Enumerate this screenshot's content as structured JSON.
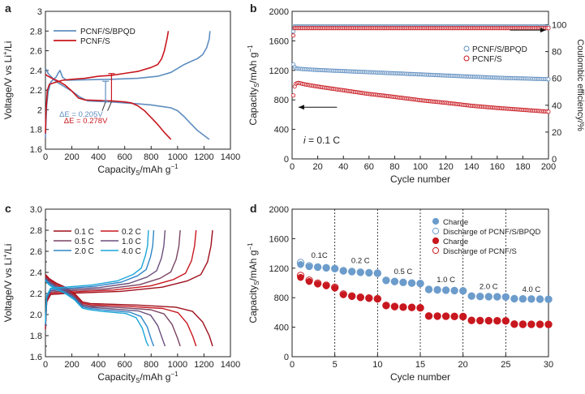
{
  "colors": {
    "red": "#c8171e",
    "blue": "#5f8ec0",
    "blue_fill": "#6c9ccb",
    "light_blue": "#9cc0e0",
    "axis": "#222222",
    "ref_line": "#9aa6b0"
  },
  "chart_data": [
    {
      "id": "a",
      "panel_label": "a",
      "type": "line",
      "xlabel_main": "Capacity",
      "xlabel_sub": "S",
      "xlabel_rest": "/mAh g",
      "xlabel_sup": "−1",
      "ylabel_main": "Voltage/V vs Li",
      "ylabel_sup": "+",
      "ylabel_rest": "/Li",
      "xlim": [
        0,
        1400
      ],
      "ylim": [
        1.6,
        3.0
      ],
      "xticks": [
        0,
        200,
        400,
        600,
        800,
        1000,
        1200,
        1400
      ],
      "yticks": [
        1.6,
        1.8,
        2.0,
        2.2,
        2.4,
        2.6,
        2.8,
        3.0
      ],
      "series": [
        {
          "name": "PCNF/S/BPQD",
          "color": "#5f8ec0",
          "segments": [
            [
              [
                0,
                2.42
              ],
              [
                10,
                2.4
              ],
              [
                20,
                2.37
              ],
              [
                40,
                2.34
              ],
              [
                70,
                2.3
              ],
              [
                100,
                2.27
              ],
              [
                150,
                2.23
              ],
              [
                200,
                2.19
              ],
              [
                260,
                2.13
              ],
              [
                320,
                2.09
              ],
              [
                400,
                2.085
              ],
              [
                500,
                2.08
              ],
              [
                600,
                2.07
              ],
              [
                700,
                2.06
              ],
              [
                800,
                2.05
              ],
              [
                900,
                2.03
              ],
              [
                950,
                2.02
              ],
              [
                1000,
                1.99
              ],
              [
                1050,
                1.93
              ],
              [
                1100,
                1.86
              ],
              [
                1150,
                1.79
              ],
              [
                1200,
                1.74
              ],
              [
                1240,
                1.7
              ]
            ],
            [
              [
                0,
                1.72
              ],
              [
                5,
                1.9
              ],
              [
                10,
                2.05
              ],
              [
                20,
                2.18
              ],
              [
                40,
                2.28
              ],
              [
                60,
                2.31
              ],
              [
                80,
                2.33
              ],
              [
                100,
                2.38
              ],
              [
                110,
                2.4
              ],
              [
                130,
                2.33
              ],
              [
                160,
                2.3
              ],
              [
                300,
                2.305
              ],
              [
                500,
                2.31
              ],
              [
                700,
                2.32
              ],
              [
                850,
                2.34
              ],
              [
                950,
                2.38
              ],
              [
                1000,
                2.42
              ],
              [
                1050,
                2.46
              ],
              [
                1100,
                2.49
              ],
              [
                1150,
                2.52
              ],
              [
                1190,
                2.56
              ],
              [
                1220,
                2.63
              ],
              [
                1240,
                2.72
              ],
              [
                1245,
                2.8
              ]
            ]
          ]
        },
        {
          "name": "PCNF/S",
          "color": "#c8171e",
          "segments": [
            [
              [
                0,
                2.36
              ],
              [
                20,
                2.34
              ],
              [
                50,
                2.32
              ],
              [
                100,
                2.29
              ],
              [
                150,
                2.25
              ],
              [
                200,
                2.19
              ],
              [
                250,
                2.12
              ],
              [
                300,
                2.1
              ],
              [
                400,
                2.095
              ],
              [
                500,
                2.09
              ],
              [
                600,
                2.08
              ],
              [
                650,
                2.07
              ],
              [
                700,
                2.04
              ],
              [
                750,
                1.99
              ],
              [
                800,
                1.92
              ],
              [
                850,
                1.85
              ],
              [
                900,
                1.77
              ],
              [
                950,
                1.7
              ]
            ],
            [
              [
                0,
                1.76
              ],
              [
                5,
                2.0
              ],
              [
                15,
                2.2
              ],
              [
                30,
                2.26
              ],
              [
                80,
                2.28
              ],
              [
                130,
                2.3
              ],
              [
                200,
                2.31
              ],
              [
                300,
                2.32
              ],
              [
                400,
                2.34
              ],
              [
                500,
                2.35
              ],
              [
                600,
                2.37
              ],
              [
                700,
                2.39
              ],
              [
                800,
                2.43
              ],
              [
                850,
                2.46
              ],
              [
                880,
                2.52
              ],
              [
                900,
                2.6
              ],
              [
                920,
                2.72
              ],
              [
                930,
                2.8
              ]
            ]
          ]
        }
      ],
      "legend": [
        "PCNF/S/BPQD",
        "PCNF/S"
      ],
      "annotations": [
        {
          "text": "ΔE = 0.205V",
          "color": "#5f8ec0",
          "x": 455,
          "voltages": [
            2.29,
            2.085
          ]
        },
        {
          "text": "ΔE = 0.278V",
          "color": "#c8171e",
          "x": 500,
          "voltages": [
            2.368,
            2.09
          ]
        }
      ]
    },
    {
      "id": "b",
      "panel_label": "b",
      "type": "scatter",
      "xlabel": "Cycle number",
      "ylabel_main": "Capacity",
      "ylabel_sub": "S",
      "ylabel_rest": "/mAh g",
      "ylabel_sup": "−1",
      "y2label": "Coulombic efficiency/%",
      "xlim": [
        0,
        200
      ],
      "ylim": [
        0,
        2000
      ],
      "y2lim": [
        0,
        110
      ],
      "xticks": [
        0,
        20,
        40,
        60,
        80,
        100,
        120,
        140,
        160,
        180,
        200
      ],
      "yticks": [
        0,
        400,
        800,
        1200,
        1600,
        2000
      ],
      "y2ticks": [
        0,
        20,
        40,
        60,
        80,
        100
      ],
      "reference_efficiency": 100,
      "condition_text": "i = 0.1 C",
      "legend": [
        "PCNF/S/BPQD",
        "PCNF/S"
      ],
      "series": [
        {
          "name": "PCNF/S/BPQD capacity",
          "color": "#5f8ec0",
          "marker": "open-circle",
          "first_cycles": [
            1280,
            1245,
            1230
          ],
          "curve": [
            [
              3,
              1225
            ],
            [
              10,
              1215
            ],
            [
              20,
              1205
            ],
            [
              40,
              1190
            ],
            [
              60,
              1175
            ],
            [
              80,
              1160
            ],
            [
              100,
              1145
            ],
            [
              120,
              1130
            ],
            [
              140,
              1115
            ],
            [
              160,
              1100
            ],
            [
              180,
              1090
            ],
            [
              200,
              1080
            ]
          ]
        },
        {
          "name": "PCNF/S capacity",
          "color": "#c8171e",
          "marker": "open-circle",
          "first_cycles": [
            860,
            980,
            1020
          ],
          "curve": [
            [
              3,
              1025
            ],
            [
              5,
              1030
            ],
            [
              10,
              1010
            ],
            [
              20,
              980
            ],
            [
              40,
              930
            ],
            [
              60,
              880
            ],
            [
              80,
              840
            ],
            [
              100,
              795
            ],
            [
              120,
              760
            ],
            [
              140,
              720
            ],
            [
              160,
              690
            ],
            [
              180,
              665
            ],
            [
              200,
              640
            ]
          ]
        },
        {
          "name": "PCNF/S/BPQD efficiency",
          "color": "#5f8ec0",
          "marker": "open-circle",
          "axis": "right",
          "first_cycles": [
            95
          ],
          "constant": 98.5
        },
        {
          "name": "PCNF/S efficiency",
          "color": "#c8171e",
          "marker": "open-circle",
          "axis": "right",
          "first_cycles": [
            92
          ],
          "constant": 97.5
        }
      ],
      "arrows": [
        {
          "direction": "right",
          "from_x": 170,
          "to_x": 198,
          "y2": 96
        },
        {
          "direction": "left",
          "from_x": 35,
          "to_x": 5,
          "y": 700
        }
      ]
    },
    {
      "id": "c",
      "panel_label": "c",
      "type": "line",
      "xlabel_main": "Capacity",
      "xlabel_sub": "S",
      "xlabel_rest": "/mAh g",
      "xlabel_sup": "−1",
      "ylabel_main": "Voltage/V vs Li",
      "ylabel_sup": "+",
      "ylabel_rest": "/Li",
      "xlim": [
        0,
        1400
      ],
      "ylim": [
        1.6,
        3.0
      ],
      "xticks": [
        0,
        200,
        400,
        600,
        800,
        1000,
        1200,
        1400
      ],
      "yticks": [
        1.6,
        1.7,
        1.8,
        1.9,
        2.0,
        2.1,
        2.2,
        2.3,
        2.4,
        2.5,
        2.6,
        2.7,
        2.8,
        2.9,
        3.0
      ],
      "ytick_labels": [
        "1.6",
        "",
        "1.8",
        "",
        "2.0",
        "",
        "2.2",
        "",
        "2.4",
        "",
        "2.6",
        "",
        "2.8",
        "",
        "3.0"
      ],
      "series": [
        {
          "name": "0.1 C",
          "color": "#9e0f1c",
          "capacity": 1265
        },
        {
          "name": "0.2 C",
          "color": "#c8171e",
          "capacity": 1140
        },
        {
          "name": "0.5 C",
          "color": "#7a4462",
          "capacity": 1020
        },
        {
          "name": "1.0 C",
          "color": "#6a4f7d",
          "capacity": 905
        },
        {
          "name": "2.0 C",
          "color": "#2f86c8",
          "capacity": 820
        },
        {
          "name": "4.0 C",
          "color": "#1aa6d8",
          "capacity": 780
        }
      ],
      "legend": [
        "0.1 C",
        "0.2 C",
        "0.5 C",
        "1.0 C",
        "2.0 C",
        "4.0 C"
      ]
    },
    {
      "id": "d",
      "panel_label": "d",
      "type": "scatter",
      "xlabel": "Cycle number",
      "ylabel_main": "Capacity",
      "ylabel_sub": "S",
      "ylabel_rest": "/mAh g",
      "ylabel_sup": "−1",
      "xlim": [
        0,
        30
      ],
      "ylim": [
        0,
        2000
      ],
      "xticks": [
        0,
        5,
        10,
        15,
        20,
        25,
        30
      ],
      "yticks": [
        0,
        400,
        800,
        1200,
        1600,
        2000
      ],
      "rate_dividers": [
        5,
        10,
        15,
        20,
        25
      ],
      "rate_labels": [
        {
          "text": "0.1C",
          "x": 3.2,
          "y": 1340
        },
        {
          "text": "0.2 C",
          "x": 8.0,
          "y": 1270
        },
        {
          "text": "0.5 C",
          "x": 13.0,
          "y": 1120
        },
        {
          "text": "1.0 C",
          "x": 18.0,
          "y": 1010
        },
        {
          "text": "2.0 C",
          "x": 23.0,
          "y": 920
        },
        {
          "text": "4.0 C",
          "x": 28.0,
          "y": 880
        }
      ],
      "legend": [
        "Charge",
        "Discharge of PCNF/S/BPQD",
        "Charge",
        "Discharge of PCNF/S"
      ],
      "series": [
        {
          "name": "Charge (PCNF/S/BPQD)",
          "color": "#6c9ccb",
          "marker": "filled-circle",
          "x": [
            1,
            2,
            3,
            4,
            5,
            6,
            7,
            8,
            9,
            10,
            11,
            12,
            13,
            14,
            15,
            16,
            17,
            18,
            19,
            20,
            21,
            22,
            23,
            24,
            25,
            26,
            27,
            28,
            29,
            30
          ],
          "values": [
            1250,
            1220,
            1210,
            1200,
            1190,
            1160,
            1150,
            1140,
            1135,
            1130,
            1030,
            1015,
            1005,
            995,
            990,
            910,
            905,
            900,
            895,
            890,
            820,
            815,
            812,
            810,
            808,
            785,
            782,
            780,
            778,
            776
          ]
        },
        {
          "name": "Discharge of PCNF/S/BPQD",
          "color": "#6c9ccb",
          "marker": "open-circle",
          "x": [
            1,
            2,
            3,
            4,
            5,
            6,
            7,
            8,
            9,
            10,
            11,
            12,
            13,
            14,
            15,
            16,
            17,
            18,
            19,
            20,
            21,
            22,
            23,
            24,
            25,
            26,
            27,
            28,
            29,
            30
          ],
          "values": [
            1275,
            1230,
            1215,
            1205,
            1195,
            1165,
            1155,
            1145,
            1138,
            1132,
            1035,
            1020,
            1008,
            998,
            992,
            912,
            907,
            902,
            897,
            892,
            822,
            817,
            814,
            812,
            810,
            787,
            784,
            782,
            780,
            778
          ]
        },
        {
          "name": "Charge (PCNF/S)",
          "color": "#c8171e",
          "marker": "filled-circle",
          "x": [
            1,
            2,
            3,
            4,
            5,
            6,
            7,
            8,
            9,
            10,
            11,
            12,
            13,
            14,
            15,
            16,
            17,
            18,
            19,
            20,
            21,
            22,
            23,
            24,
            25,
            26,
            27,
            28,
            29,
            30
          ],
          "values": [
            1075,
            1020,
            985,
            960,
            930,
            840,
            815,
            800,
            790,
            780,
            690,
            675,
            670,
            665,
            660,
            550,
            548,
            546,
            544,
            542,
            490,
            488,
            486,
            485,
            484,
            440,
            438,
            437,
            436,
            435
          ]
        },
        {
          "name": "Discharge of PCNF/S",
          "color": "#c8171e",
          "marker": "open-circle",
          "x": [
            1,
            2,
            3,
            4,
            5,
            6,
            7,
            8,
            9,
            10,
            11,
            12,
            13,
            14,
            15,
            16,
            17,
            18,
            19,
            20,
            21,
            22,
            23,
            24,
            25,
            26,
            27,
            28,
            29,
            30
          ],
          "values": [
            1100,
            1035,
            995,
            968,
            940,
            848,
            822,
            806,
            795,
            785,
            695,
            680,
            673,
            668,
            663,
            552,
            550,
            548,
            546,
            544,
            492,
            490,
            488,
            487,
            486,
            442,
            440,
            439,
            438,
            437
          ]
        }
      ]
    }
  ]
}
